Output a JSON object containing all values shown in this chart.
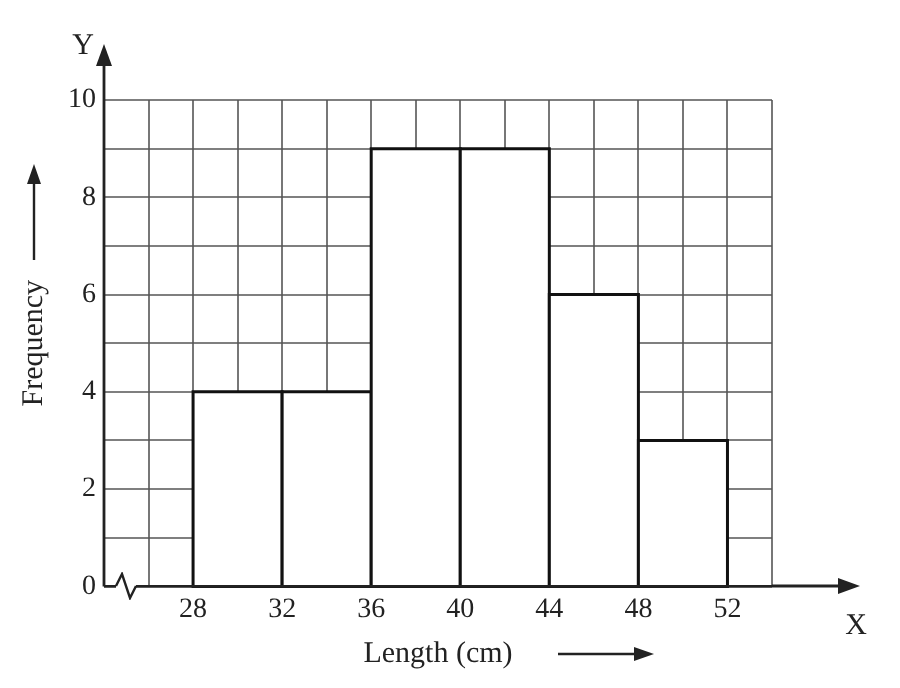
{
  "chart_data": {
    "type": "histogram",
    "bins": [
      28,
      32,
      36,
      40,
      44,
      48,
      52
    ],
    "values": [
      4,
      4,
      9,
      9,
      6,
      3
    ],
    "color": "#ffffff",
    "xlabel": "Length (cm)",
    "ylabel": "Frequency",
    "annotations": [
      "X",
      "Y"
    ],
    "xlim": [
      24,
      54
    ],
    "xticks": [
      {
        "value": 24,
        "label": null
      },
      {
        "value": 26,
        "label": null
      },
      28,
      {
        "value": 30,
        "label": null
      },
      32,
      {
        "value": 34,
        "label": null
      },
      36,
      {
        "value": 38,
        "label": null
      },
      40,
      {
        "value": 42,
        "label": null
      },
      44,
      {
        "value": 46,
        "label": null
      },
      48,
      {
        "value": 50,
        "label": null
      },
      52,
      {
        "value": 54,
        "label": null
      }
    ],
    "ylim": [
      0,
      10
    ],
    "yticks": [
      0,
      {
        "value": 1,
        "label": null
      },
      2,
      {
        "value": 3,
        "label": null
      },
      4,
      {
        "value": 5,
        "label": null
      },
      6,
      {
        "value": 7,
        "label": null
      },
      8,
      {
        "value": 9,
        "label": null
      },
      10
    ],
    "grid": true
  }
}
